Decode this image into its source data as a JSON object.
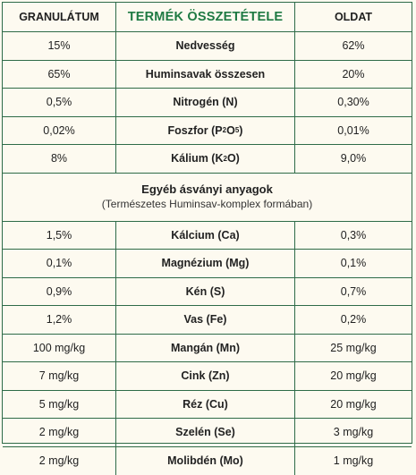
{
  "header": {
    "col1": "GRANULÁTUM",
    "col2": "TERMÉK ÖSSZETÉTELE",
    "col3": "OLDAT"
  },
  "rows_a": [
    {
      "gran": "15%",
      "name": "Nedvesség",
      "oldat": "62%"
    },
    {
      "gran": "65%",
      "name": "Huminsavak összesen",
      "oldat": "20%"
    },
    {
      "gran": "0,5%",
      "name": "Nitrogén (N)",
      "oldat": "0,30%"
    },
    {
      "gran": "0,02%",
      "name_pre": "Foszfor (P",
      "sub1": "2",
      "name_mid": "O",
      "sub2": "5",
      "name_post": ")",
      "oldat": "0,01%"
    },
    {
      "gran": "8%",
      "name_pre": "Kálium (K",
      "sub1": "2",
      "name_post": "O)",
      "oldat": "9,0%"
    }
  ],
  "section": {
    "title": "Egyéb ásványi anyagok",
    "subtitle": "(Természetes Huminsav-komplex formában)"
  },
  "rows_b": [
    {
      "gran": "1,5%",
      "name": "Kálcium (Ca)",
      "oldat": "0,3%"
    },
    {
      "gran": "0,1%",
      "name": "Magnézium (Mg)",
      "oldat": "0,1%"
    },
    {
      "gran": "0,9%",
      "name": "Kén (S)",
      "oldat": "0,7%"
    },
    {
      "gran": "1,2%",
      "name": "Vas (Fe)",
      "oldat": "0,2%"
    },
    {
      "gran": "100 mg/kg",
      "name": "Mangán (Mn)",
      "oldat": "25 mg/kg"
    },
    {
      "gran": "7 mg/kg",
      "name": "Cink (Zn)",
      "oldat": "20 mg/kg"
    },
    {
      "gran": "5 mg/kg",
      "name": "Réz (Cu)",
      "oldat": "20 mg/kg"
    },
    {
      "gran": "2 mg/kg",
      "name": "Szelén (Se)",
      "oldat": "3 mg/kg"
    },
    {
      "gran": "2 mg/kg",
      "name": "Molibdén (Mo)",
      "oldat": "1 mg/kg"
    }
  ],
  "colors": {
    "border": "#2e6b48",
    "title": "#1e7a43",
    "background": "#fdfaf0"
  }
}
